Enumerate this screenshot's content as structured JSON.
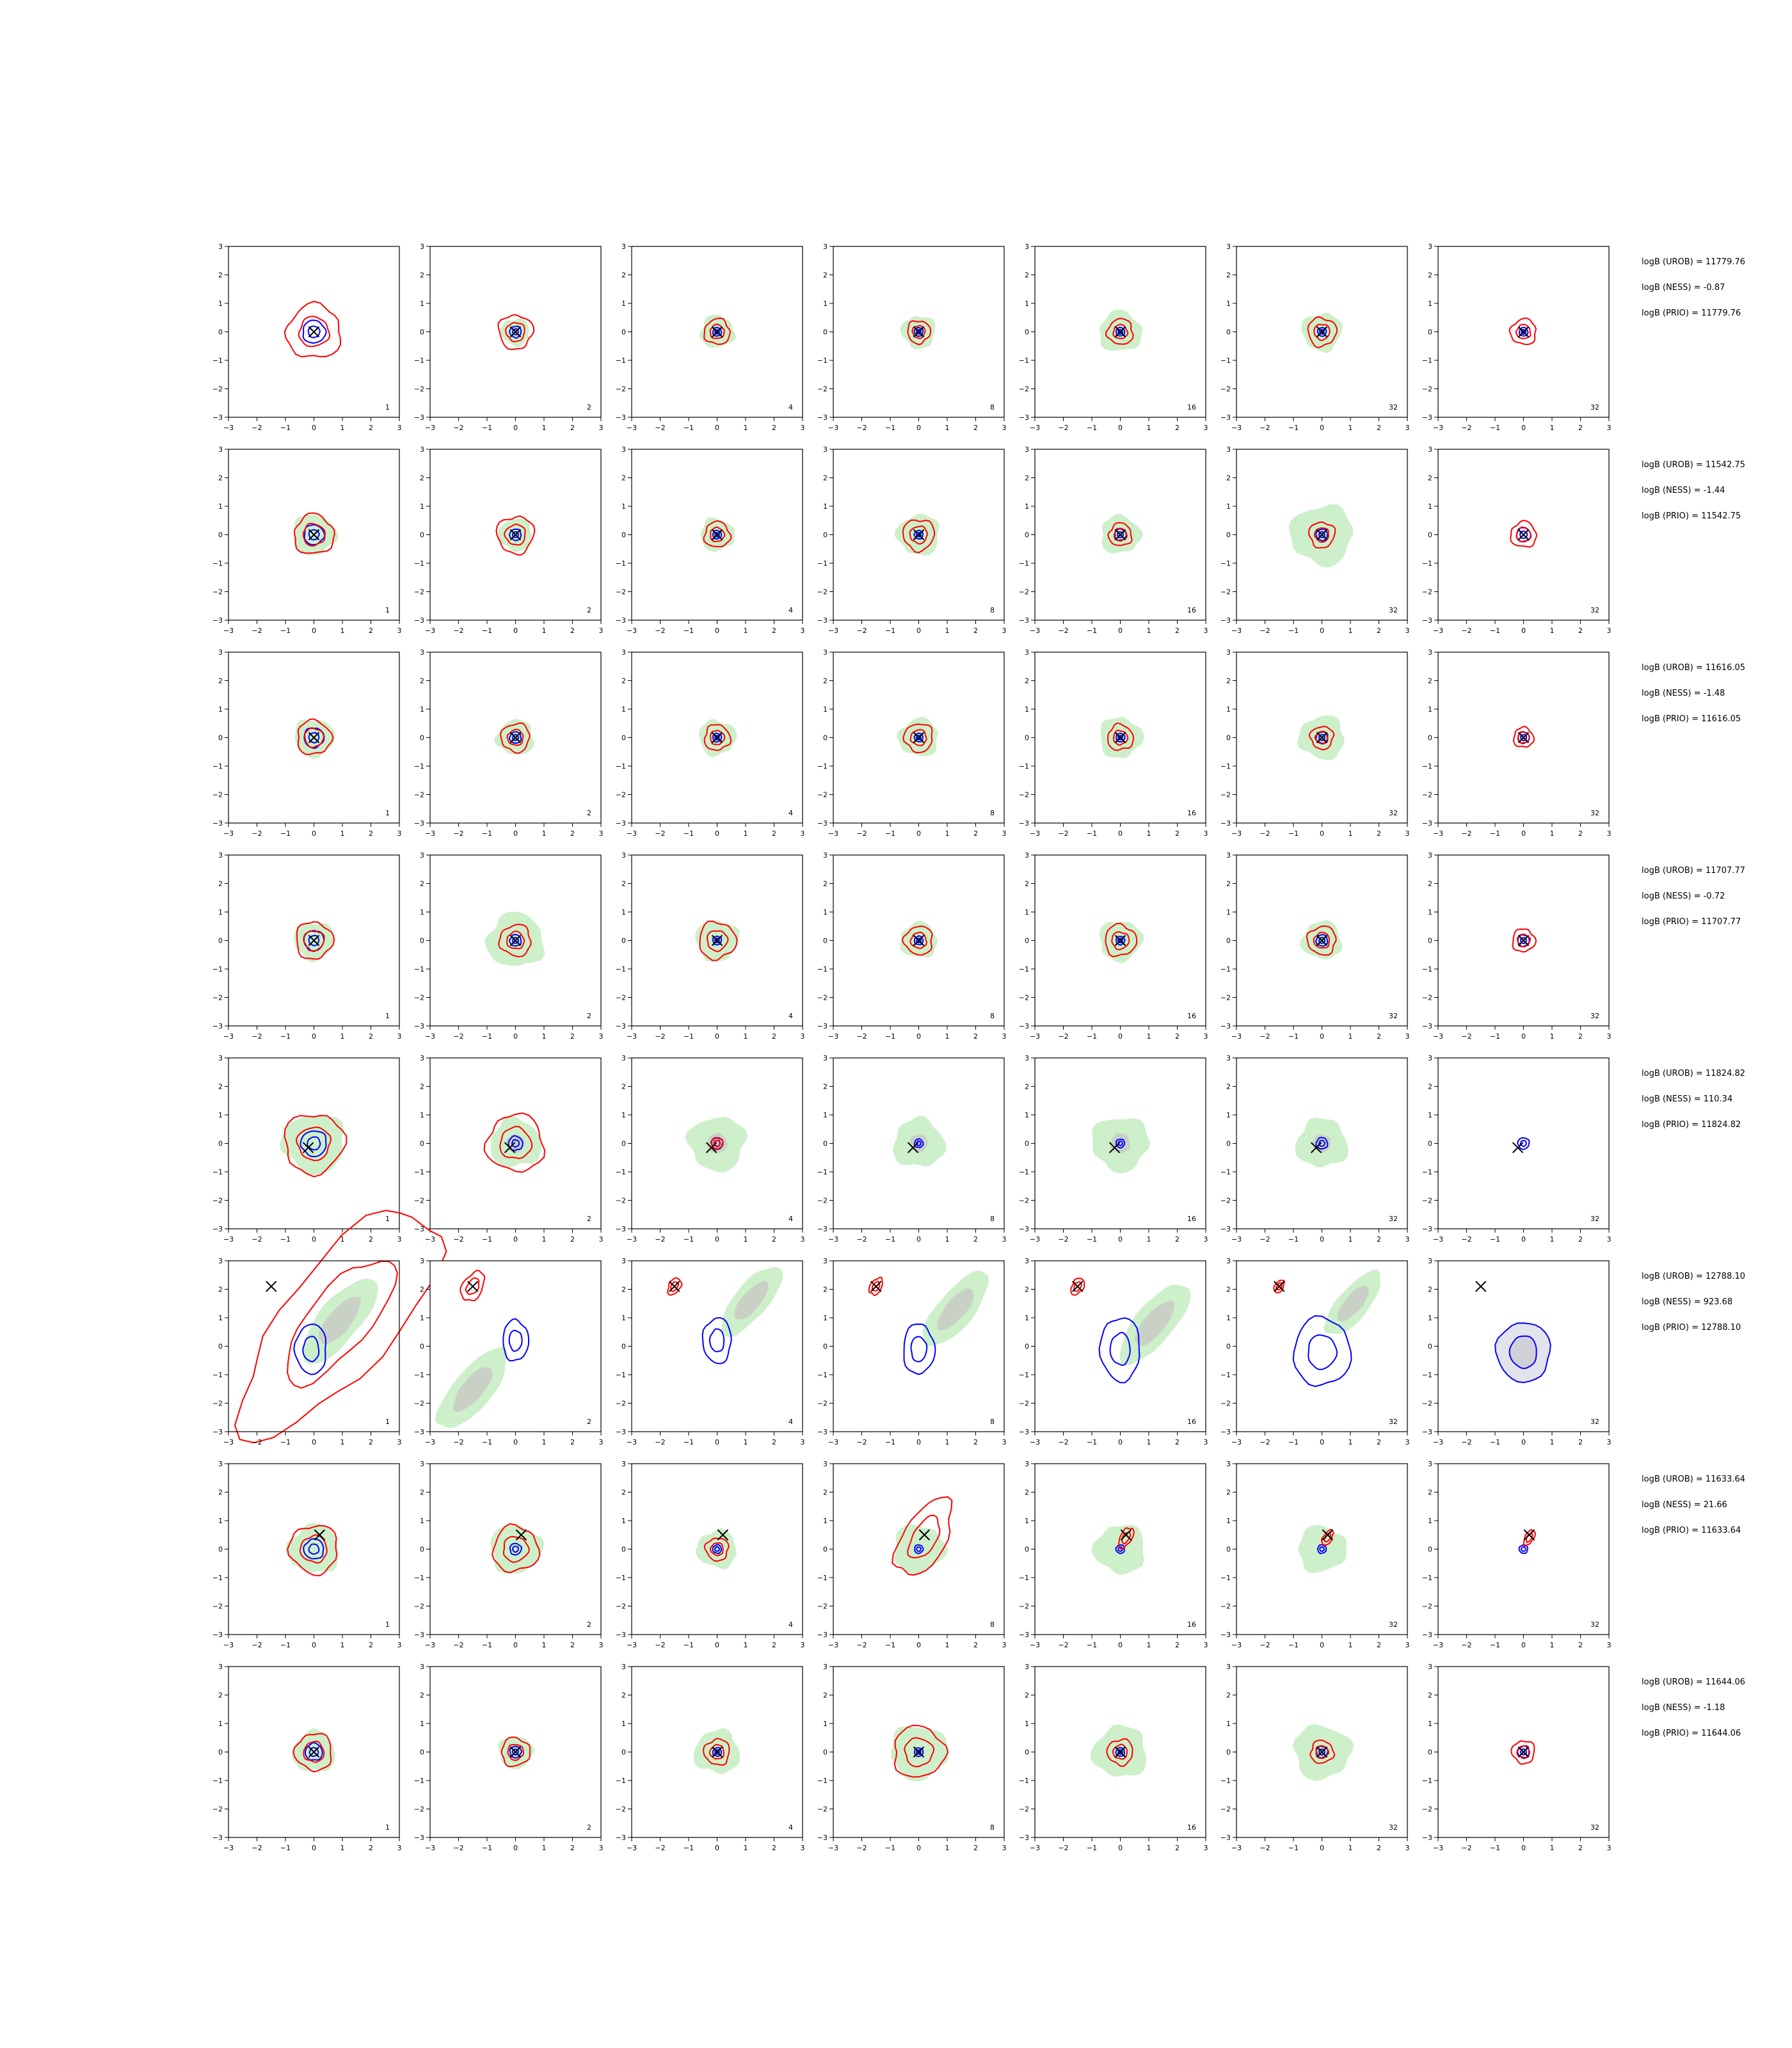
{
  "figure": {
    "background": "#ffffff"
  },
  "colors": {
    "prior_fill": "#cdefc9",
    "prior_core": "#c9d1c6",
    "target_line": "#ff0000",
    "approx_line": "#0000ff",
    "approx_fill": "#e3e3ec",
    "marker": "#000000",
    "axis": "#000000"
  },
  "chart_data": {
    "type": "contour_grid",
    "rows": 8,
    "cols": 7,
    "x_ticks": [
      "−3",
      "−2",
      "−1",
      "0",
      "1",
      "2",
      "3"
    ],
    "y_ticks": [
      "3",
      "2",
      "1",
      "0",
      "−1",
      "−2",
      "−3"
    ],
    "xlim": [
      -3,
      3
    ],
    "ylim": [
      -3,
      3
    ],
    "panel_labels": [
      "1",
      "2",
      "4",
      "8",
      "16",
      "32",
      "32"
    ],
    "row_stats": [
      {
        "urob": "logB (UROB) = 11779.76",
        "ness": "logB (NESS) = -0.87",
        "prio": "logB (PRIO) = 11779.76",
        "marker": [
          0,
          0
        ],
        "panels": [
          {
            "g": 0,
            "r": 0.95,
            "b": 0.4
          },
          {
            "g": 0.5,
            "r": 0.6,
            "b": 0.2
          },
          {
            "g": 0.6,
            "r": 0.45,
            "b": 0.15
          },
          {
            "g": 0.6,
            "r": 0.4,
            "b": 0.15
          },
          {
            "g": 0.75,
            "r": 0.45,
            "b": 0.15
          },
          {
            "g": 0.7,
            "r": 0.5,
            "b": 0.15
          },
          {
            "g": 0,
            "r": 0.45,
            "b": 0.15
          }
        ]
      },
      {
        "urob": "logB (UROB) = 11542.75",
        "ness": "logB (NESS) = -1.44",
        "prio": "logB (PRIO) = 11542.75",
        "marker": [
          0,
          0
        ],
        "panels": [
          {
            "g": 0.75,
            "r": 0.7,
            "b": 0.35
          },
          {
            "g": 0.6,
            "r": 0.65,
            "b": 0.2
          },
          {
            "g": 0.6,
            "r": 0.45,
            "b": 0.15
          },
          {
            "g": 0.75,
            "r": 0.55,
            "b": 0.15
          },
          {
            "g": 0.7,
            "r": 0.4,
            "b": 0.2
          },
          {
            "g": 1.1,
            "r": 0.45,
            "b": 0.2
          },
          {
            "g": 0,
            "r": 0.45,
            "b": 0.25
          }
        ]
      },
      {
        "urob": "logB (UROB) = 11616.05",
        "ness": "logB (NESS) = -1.48",
        "prio": "logB (PRIO) = 11616.05",
        "marker": [
          0,
          0
        ],
        "panels": [
          {
            "g": 0.7,
            "r": 0.6,
            "b": 0.35
          },
          {
            "g": 0.65,
            "r": 0.5,
            "b": 0.2
          },
          {
            "g": 0.65,
            "r": 0.45,
            "b": 0.15
          },
          {
            "g": 0.7,
            "r": 0.5,
            "b": 0.15
          },
          {
            "g": 0.75,
            "r": 0.45,
            "b": 0.15
          },
          {
            "g": 0.8,
            "r": 0.4,
            "b": 0.2
          },
          {
            "g": 0,
            "r": 0.35,
            "b": 0.2
          }
        ]
      },
      {
        "urob": "logB (UROB) = 11707.77",
        "ness": "logB (NESS) = -0.72",
        "prio": "logB (PRIO) = 11707.77",
        "marker": [
          0,
          0
        ],
        "panels": [
          {
            "g": 0.7,
            "r": 0.65,
            "b": 0.35
          },
          {
            "g": 1.0,
            "r": 0.55,
            "b": 0.2
          },
          {
            "g": 0.75,
            "r": 0.65,
            "b": 0.15
          },
          {
            "g": 0.65,
            "r": 0.5,
            "b": 0.15
          },
          {
            "g": 0.75,
            "r": 0.55,
            "b": 0.15
          },
          {
            "g": 0.7,
            "r": 0.5,
            "b": 0.2
          },
          {
            "g": 0,
            "r": 0.4,
            "b": 0.2
          }
        ]
      },
      {
        "urob": "logB (UROB) = 11824.82",
        "ness": "logB (NESS) = 110.34",
        "prio": "logB (PRIO) = 11824.82",
        "marker": [
          -0.2,
          -0.15
        ],
        "panels": [
          {
            "g": 1.1,
            "r": 1.05,
            "b": 0.45
          },
          {
            "g": 0.9,
            "r": 1.0,
            "b": 0.25
          },
          {
            "g": 1.0,
            "r": 0.2,
            "b": 0.2
          },
          {
            "g": 0.9,
            "r": 0,
            "b": 0.15
          },
          {
            "g": 1.0,
            "r": 0,
            "b": 0.15
          },
          {
            "g": 0.9,
            "r": 0,
            "b": 0.2
          },
          {
            "g": 0,
            "r": 0,
            "b": 0.2
          }
        ]
      },
      {
        "urob": "logB (UROB) = 12788.10",
        "ness": "logB (NESS) = 923.68",
        "prio": "logB (PRIO) = 12788.10",
        "marker": [
          -1.5,
          2.1
        ],
        "panels": [
          {
            "g": 1.6,
            "r": 1.9,
            "b": 0.55
          },
          {
            "g": 1.5,
            "r": 0.35,
            "b": 0.45
          },
          {
            "g": 1.3,
            "r": 0.2,
            "b": 0.5
          },
          {
            "g": 1.4,
            "r": 0.2,
            "b": 0.55
          },
          {
            "g": 1.5,
            "r": 0.2,
            "b": 0.7
          },
          {
            "g": 1.2,
            "r": 0.15,
            "b": 1.0
          },
          {
            "g": 0,
            "r": 0,
            "b": 0.95
          }
        ]
      },
      {
        "urob": "logB (UROB) = 11633.64",
        "ness": "logB (NESS) = 21.66",
        "prio": "logB (PRIO) = 11633.64",
        "marker": [
          0.2,
          0.5
        ],
        "panels": [
          {
            "g": 0.9,
            "r": 0.85,
            "b": 0.35
          },
          {
            "g": 0.9,
            "r": 0.8,
            "b": 0.2
          },
          {
            "g": 0.7,
            "r": 0.4,
            "b": 0.15
          },
          {
            "g": 0.9,
            "r": 0.75,
            "b": 0.15
          },
          {
            "g": 0.9,
            "r": 0.2,
            "b": 0.15
          },
          {
            "g": 0.85,
            "r": 0.15,
            "b": 0.15
          },
          {
            "g": 0,
            "r": 0.15,
            "b": 0.15
          }
        ]
      },
      {
        "urob": "logB (UROB) = 11644.06",
        "ness": "logB (NESS) = -1.18",
        "prio": "logB (PRIO) = 11644.06",
        "marker": [
          0,
          0
        ],
        "panels": [
          {
            "g": 0.75,
            "r": 0.65,
            "b": 0.3
          },
          {
            "g": 0.6,
            "r": 0.5,
            "b": 0.2
          },
          {
            "g": 0.8,
            "r": 0.45,
            "b": 0.15
          },
          {
            "g": 1.0,
            "r": 0.9,
            "b": 0.15
          },
          {
            "g": 0.95,
            "r": 0.45,
            "b": 0.15
          },
          {
            "g": 1.0,
            "r": 0.4,
            "b": 0.2
          },
          {
            "g": 0,
            "r": 0.4,
            "b": 0.2
          }
        ]
      }
    ]
  }
}
